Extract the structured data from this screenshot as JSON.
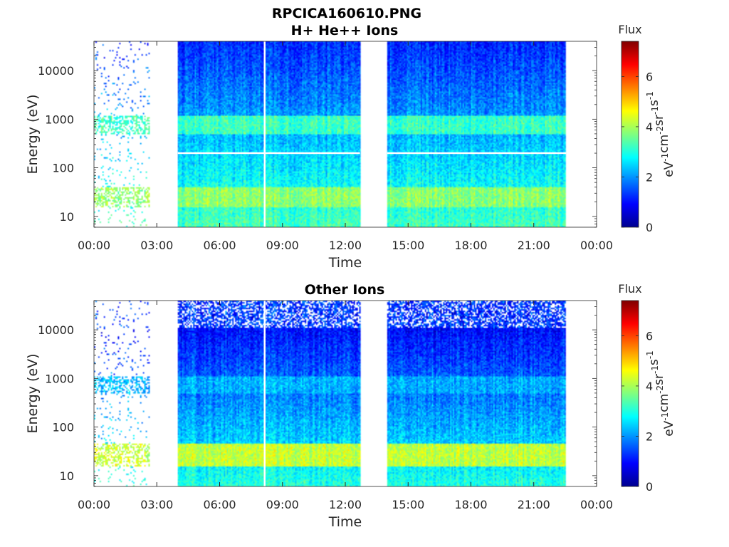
{
  "figure": {
    "title": "RPCICA160610.PNG",
    "background": "#ffffff",
    "axis_color": "#262626",
    "data_gap_color": "#ffffff"
  },
  "chart_data": [
    {
      "type": "heatmap",
      "title": "H+ He++ Ions",
      "xlabel": "Time",
      "ylabel": "Energy (eV)",
      "y_scale": "log",
      "ylim": [
        6,
        40000
      ],
      "xlim": [
        0,
        24
      ],
      "x_ticks": [
        0,
        3,
        6,
        9,
        12,
        15,
        18,
        21,
        24
      ],
      "x_tick_labels": [
        "00:00",
        "03:00",
        "06:00",
        "09:00",
        "12:00",
        "15:00",
        "18:00",
        "21:00",
        "00:00"
      ],
      "y_ticks": [
        10,
        100,
        1000,
        10000
      ],
      "y_tick_labels": [
        "10",
        "100",
        "1000",
        "10000"
      ],
      "data_segments_hours": [
        [
          0,
          2.65
        ],
        [
          4.0,
          12.7
        ],
        [
          14.0,
          22.55
        ]
      ],
      "sparse_segments_hours": [
        [
          0,
          2.65
        ]
      ],
      "white_vertical_line_hours": [
        8.15
      ],
      "white_horizontal_line_ev": 200,
      "features": [
        {
          "band_ev": [
            500,
            1200
          ],
          "flux": 3.2
        },
        {
          "band_ev": [
            15,
            40
          ],
          "flux": 3.8
        }
      ],
      "colorbar": {
        "title": "Flux",
        "label": "eV-1cm-2sr-1s-1",
        "range": [
          0,
          7.4
        ],
        "ticks": [
          0,
          2,
          4,
          6
        ],
        "tick_labels": [
          "0",
          "2",
          "4",
          "6"
        ],
        "colormap": "jet"
      }
    },
    {
      "type": "heatmap",
      "title": "Other Ions",
      "xlabel": "Time",
      "ylabel": "Energy (eV)",
      "y_scale": "log",
      "ylim": [
        6,
        40000
      ],
      "xlim": [
        0,
        24
      ],
      "x_ticks": [
        0,
        3,
        6,
        9,
        12,
        15,
        18,
        21,
        24
      ],
      "x_tick_labels": [
        "00:00",
        "03:00",
        "06:00",
        "09:00",
        "12:00",
        "15:00",
        "18:00",
        "21:00",
        "00:00"
      ],
      "y_ticks": [
        10,
        100,
        1000,
        10000
      ],
      "y_tick_labels": [
        "10",
        "100",
        "1000",
        "10000"
      ],
      "data_segments_hours": [
        [
          0,
          2.65
        ],
        [
          4.0,
          12.7
        ],
        [
          14.0,
          22.55
        ]
      ],
      "sparse_segments_hours": [
        [
          0,
          2.65
        ]
      ],
      "white_vertical_line_hours": [
        8.15
      ],
      "features": [
        {
          "band_ev": [
            500,
            1100
          ],
          "flux": 2.2
        },
        {
          "band_ev": [
            15,
            45
          ],
          "flux": 4.2
        }
      ],
      "colorbar": {
        "title": "Flux",
        "label": "eV-1cm-2sr-1s-1",
        "range": [
          0,
          7.4
        ],
        "ticks": [
          0,
          2,
          4,
          6
        ],
        "tick_labels": [
          "0",
          "2",
          "4",
          "6"
        ],
        "colormap": "jet"
      }
    }
  ]
}
